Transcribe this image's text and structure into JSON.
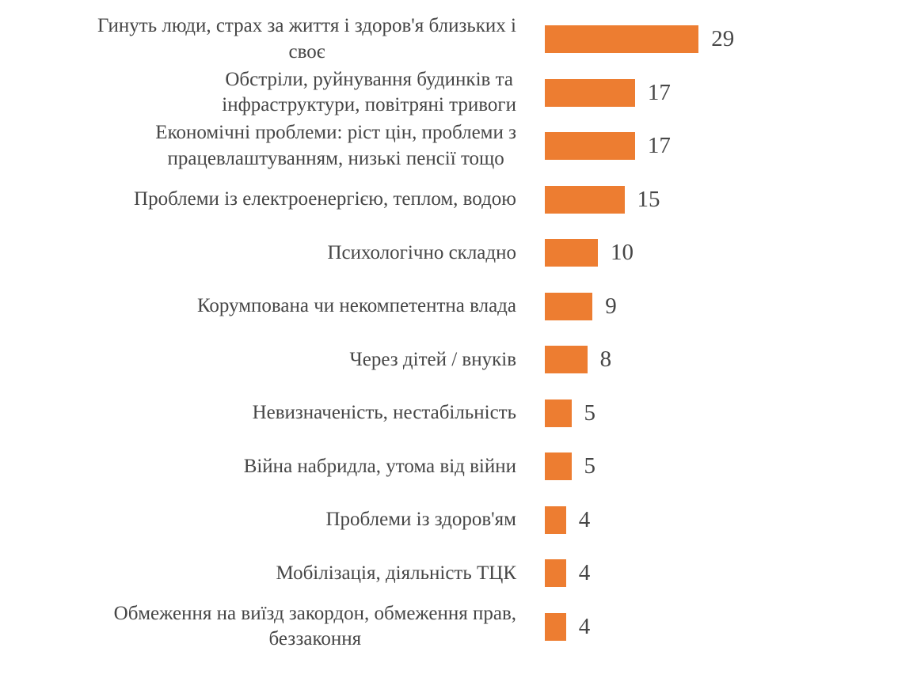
{
  "chart_data": {
    "type": "bar",
    "orientation": "horizontal",
    "title": "",
    "xlabel": "",
    "ylabel": "",
    "xlim": [
      0,
      30
    ],
    "grid": false,
    "legend": false,
    "data_labels_position": "outside-end",
    "bar_color": "#ED7D31",
    "text_color": "#464646",
    "categories": [
      "Гинуть люди, страх за життя і здоров'я близьких і\nсвоє",
      "Обстріли, руйнування будинків та\nінфраструктури, повітряні тривоги",
      "Економічні проблеми: ріст цін, проблеми з\nпрацевлаштуванням, низькі пенсії тощо",
      "Проблеми із електроенергією, теплом, водою",
      "Психологічно складно",
      "Корумпована чи некомпетентна влада",
      "Через дітей / внуків",
      "Невизначеність, нестабільність",
      "Війна набридла, утома від війни",
      "Проблеми із здоров'ям",
      "Мобілізація, діяльність ТЦК",
      "Обмеження на виїзд закордон, обмеження прав,\nбеззаконня"
    ],
    "values": [
      29,
      17,
      17,
      15,
      10,
      9,
      8,
      5,
      5,
      4,
      4,
      4
    ]
  }
}
